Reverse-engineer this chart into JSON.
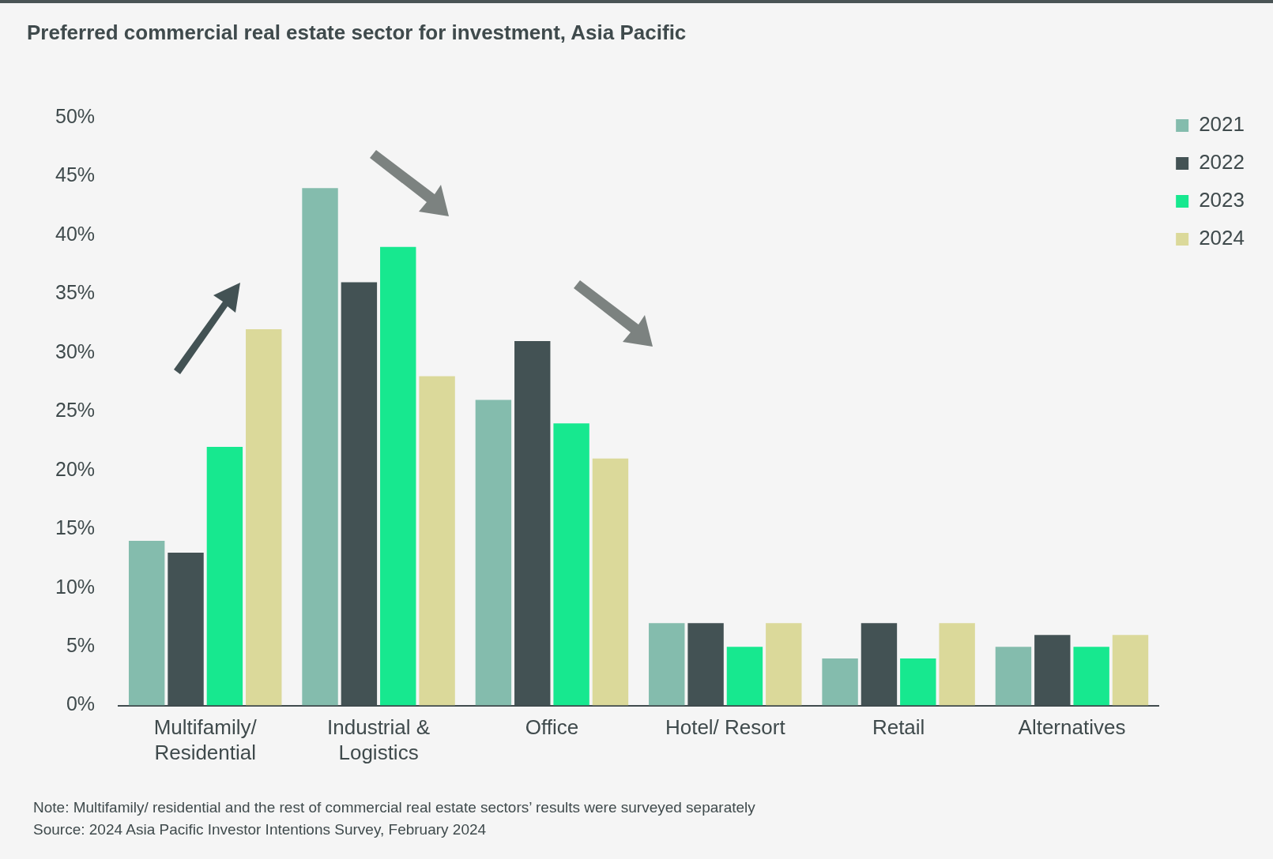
{
  "chart_data": {
    "type": "bar",
    "title": "Preferred commercial real estate sector for investment, Asia Pacific",
    "categories": [
      "Multifamily/ Residential",
      "Industrial & Logistics",
      "Office",
      "Hotel/ Resort",
      "Retail",
      "Alternatives"
    ],
    "series": [
      {
        "name": "2021",
        "color": "#84bcad",
        "values": [
          14,
          44,
          26,
          7,
          4,
          5
        ]
      },
      {
        "name": "2022",
        "color": "#435254",
        "values": [
          13,
          36,
          31,
          7,
          7,
          6
        ]
      },
      {
        "name": "2023",
        "color": "#17e88f",
        "values": [
          22,
          39,
          24,
          5,
          4,
          5
        ]
      },
      {
        "name": "2024",
        "color": "#dbd99a",
        "values": [
          32,
          28,
          21,
          7,
          7,
          6
        ]
      }
    ],
    "ylim": [
      0,
      50
    ],
    "yticks": [
      {
        "value": 0,
        "label": "0%"
      },
      {
        "value": 5,
        "label": "5%"
      },
      {
        "value": 10,
        "label": "10%"
      },
      {
        "value": 15,
        "label": "15%"
      },
      {
        "value": 20,
        "label": "20%"
      },
      {
        "value": 25,
        "label": "25%"
      },
      {
        "value": 30,
        "label": "30%"
      },
      {
        "value": 35,
        "label": "35%"
      },
      {
        "value": 40,
        "label": "40%"
      },
      {
        "value": 45,
        "label": "45%"
      },
      {
        "value": 50,
        "label": "50%"
      }
    ],
    "grid": false,
    "legend": "top right",
    "annotations": [
      "Note: Multifamily/ residential and the rest of commercial real estate sectors’ results were surveyed separately",
      "Source: 2024 Asia Pacific Investor Intentions Survey, February 2024"
    ]
  }
}
